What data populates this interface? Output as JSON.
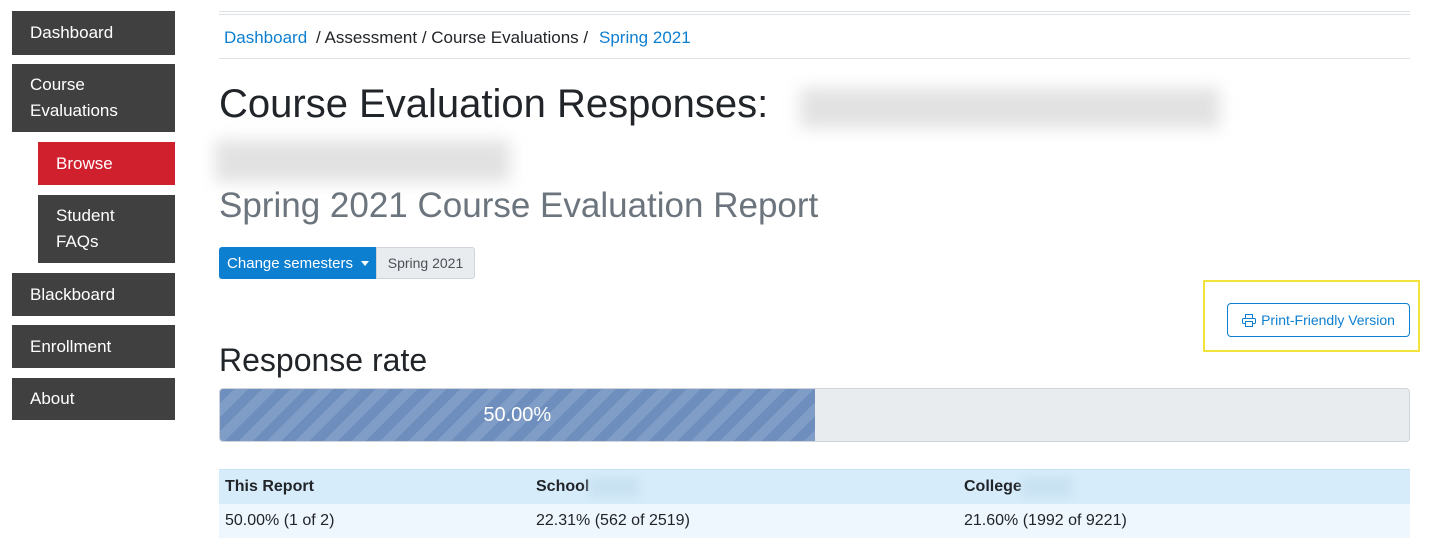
{
  "sidebar": {
    "items": [
      "Dashboard",
      "Course Evaluations",
      "Browse",
      "Student FAQs",
      "Blackboard",
      "Enrollment",
      "About"
    ]
  },
  "breadcrumb": {
    "items": [
      "Dashboard",
      "/ Assessment / Course Evaluations /",
      "Spring 2021"
    ]
  },
  "header": {
    "title": "Course Evaluation Responses:",
    "subtitle": "Spring 2021 Course Evaluation Report"
  },
  "controls": {
    "change_button": "Change semesters",
    "semester": "Spring 2021",
    "print_button": "Print-Friendly Version"
  },
  "response_rate": {
    "heading": "Response rate",
    "progress": {
      "value": 50,
      "label": "50.00%"
    }
  },
  "table": {
    "headers": [
      "This Report",
      "School",
      "College"
    ],
    "rows": [
      [
        "50.00% (1 of 2)",
        "22.31% (562 of 2519)",
        "21.60% (1992 of 9221)"
      ]
    ]
  }
}
